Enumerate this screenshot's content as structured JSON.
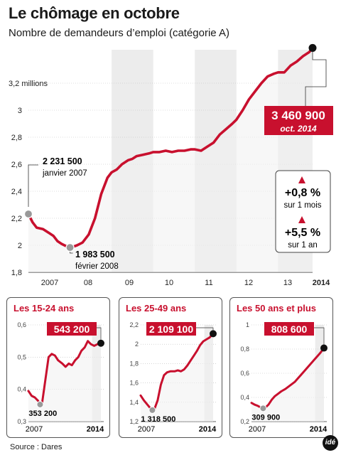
{
  "title": "Le chômage en octobre",
  "subtitle": "Nombre de demandeurs d’emploi (catégorie A)",
  "source": "Source : Dares",
  "logo": "idé",
  "colors": {
    "line": "#c8102e",
    "accent": "#c8102e",
    "band": "#ececec",
    "dot_end": "#111111",
    "dot_start": "#999999"
  },
  "chart_data": [
    {
      "type": "line",
      "title": "Le chômage en octobre",
      "subtitle": "Nombre de demandeurs d’emploi (catégorie A)",
      "ylim": [
        1.8,
        3.5
      ],
      "yticks": [
        1.8,
        2,
        2.2,
        2.4,
        2.6,
        2.8,
        3,
        3.2
      ],
      "ytick_labels": [
        "1,8",
        "2",
        "2,2",
        "2,4",
        "2,6",
        "2,8",
        "3",
        "3,2 millions"
      ],
      "xlim": [
        2007.0,
        2013.83
      ],
      "xtick_labels": [
        "2007",
        "08",
        "09",
        "10",
        "11",
        "12",
        "13",
        "2014"
      ],
      "x": [
        2007.0,
        2007.1,
        2007.2,
        2007.35,
        2007.5,
        2007.6,
        2007.7,
        2007.8,
        2007.9,
        2008.0,
        2008.08,
        2008.17,
        2008.3,
        2008.45,
        2008.6,
        2008.75,
        2008.9,
        2009.0,
        2009.12,
        2009.25,
        2009.4,
        2009.5,
        2009.6,
        2009.75,
        2009.9,
        2010.0,
        2010.15,
        2010.3,
        2010.45,
        2010.6,
        2010.75,
        2010.9,
        2011.0,
        2011.15,
        2011.3,
        2011.45,
        2011.6,
        2011.75,
        2011.9,
        2012.0,
        2012.15,
        2012.3,
        2012.45,
        2012.6,
        2012.75,
        2012.9,
        2013.0,
        2013.15,
        2013.3,
        2013.45,
        2013.6,
        2013.75,
        2013.83
      ],
      "y": [
        2.2315,
        2.17,
        2.13,
        2.12,
        2.09,
        2.07,
        2.03,
        2.01,
        1.995,
        1.9835,
        1.99,
        2.0,
        2.02,
        2.08,
        2.2,
        2.38,
        2.5,
        2.54,
        2.56,
        2.6,
        2.63,
        2.64,
        2.66,
        2.67,
        2.68,
        2.69,
        2.69,
        2.7,
        2.69,
        2.7,
        2.7,
        2.71,
        2.71,
        2.7,
        2.73,
        2.76,
        2.82,
        2.86,
        2.9,
        2.93,
        3.0,
        3.08,
        3.14,
        3.2,
        3.25,
        3.27,
        3.28,
        3.28,
        3.33,
        3.36,
        3.4,
        3.43,
        3.4609
      ],
      "bands": [
        [
          2009.0,
          2010.0
        ],
        [
          2011.0,
          2012.0
        ],
        [
          2013.0,
          2013.83
        ]
      ],
      "annotations": {
        "start_value": "2 231 500",
        "start_date": "janvier 2007",
        "min_value": "1 983 500",
        "min_date": "février 2008",
        "end_value": "3 460 900",
        "end_date": "oct. 2014"
      },
      "changes": [
        {
          "value": "+0,8 %",
          "label": "sur 1 mois"
        },
        {
          "value": "+5,5 %",
          "label": "sur 1 an"
        }
      ]
    },
    {
      "type": "line",
      "title": "Les 15-24 ans",
      "ylim": [
        0.3,
        0.6
      ],
      "yticks": [
        0.3,
        0.4,
        0.5,
        0.6
      ],
      "ytick_labels": [
        "0,3",
        "0,4",
        "0,5",
        "0,6"
      ],
      "xlim": [
        2007.0,
        2013.83
      ],
      "xtick_labels": [
        "2007",
        "2014"
      ],
      "x": [
        2007.0,
        2007.3,
        2007.6,
        2007.9,
        2008.1,
        2008.3,
        2008.6,
        2008.9,
        2009.2,
        2009.5,
        2009.8,
        2010.2,
        2010.5,
        2010.8,
        2011.1,
        2011.4,
        2011.7,
        2012.0,
        2012.3,
        2012.6,
        2012.9,
        2013.2,
        2013.5,
        2013.83
      ],
      "y": [
        0.395,
        0.38,
        0.375,
        0.365,
        0.353,
        0.36,
        0.43,
        0.5,
        0.51,
        0.505,
        0.49,
        0.48,
        0.47,
        0.48,
        0.475,
        0.49,
        0.5,
        0.52,
        0.53,
        0.55,
        0.54,
        0.535,
        0.54,
        0.5432
      ],
      "annotations": {
        "min_value": "353 200",
        "end_value": "543 200"
      }
    },
    {
      "type": "line",
      "title": "Les 25-49 ans",
      "ylim": [
        1.2,
        2.2
      ],
      "yticks": [
        1.2,
        1.4,
        1.6,
        1.8,
        2,
        2.2
      ],
      "ytick_labels": [
        "1,2",
        "1,4",
        "1,6",
        "1,8",
        "2",
        "2,2"
      ],
      "xlim": [
        2007.0,
        2013.83
      ],
      "xtick_labels": [
        "2007",
        "2014"
      ],
      "x": [
        2007.0,
        2007.3,
        2007.6,
        2007.9,
        2008.1,
        2008.3,
        2008.6,
        2008.9,
        2009.2,
        2009.5,
        2009.8,
        2010.2,
        2010.5,
        2010.8,
        2011.1,
        2011.4,
        2011.7,
        2012.0,
        2012.3,
        2012.6,
        2012.9,
        2013.2,
        2013.5,
        2013.83
      ],
      "y": [
        1.47,
        1.42,
        1.38,
        1.34,
        1.3185,
        1.33,
        1.42,
        1.58,
        1.68,
        1.71,
        1.72,
        1.72,
        1.73,
        1.72,
        1.74,
        1.78,
        1.83,
        1.88,
        1.93,
        1.99,
        2.03,
        2.05,
        2.07,
        2.1091
      ],
      "annotations": {
        "min_value": "1 318 500",
        "end_value": "2 109 100"
      }
    },
    {
      "type": "line",
      "title": "Les 50 ans et plus",
      "ylim": [
        0.2,
        1.0
      ],
      "yticks": [
        0.2,
        0.4,
        0.6,
        0.8,
        1
      ],
      "ytick_labels": [
        "0,2",
        "0,4",
        "0,6",
        "0,8",
        "1"
      ],
      "xlim": [
        2007.0,
        2013.83
      ],
      "xtick_labels": [
        "2007",
        "2014"
      ],
      "x": [
        2007.0,
        2007.3,
        2007.6,
        2007.9,
        2008.1,
        2008.3,
        2008.6,
        2008.9,
        2009.2,
        2009.5,
        2009.8,
        2010.2,
        2010.5,
        2010.8,
        2011.1,
        2011.4,
        2011.7,
        2012.0,
        2012.3,
        2012.6,
        2012.9,
        2013.2,
        2013.5,
        2013.83
      ],
      "y": [
        0.355,
        0.34,
        0.33,
        0.315,
        0.3099,
        0.315,
        0.34,
        0.38,
        0.41,
        0.43,
        0.45,
        0.47,
        0.49,
        0.51,
        0.53,
        0.56,
        0.59,
        0.62,
        0.65,
        0.68,
        0.71,
        0.74,
        0.77,
        0.8086
      ],
      "annotations": {
        "min_value": "309 900",
        "end_value": "808 600"
      }
    }
  ]
}
